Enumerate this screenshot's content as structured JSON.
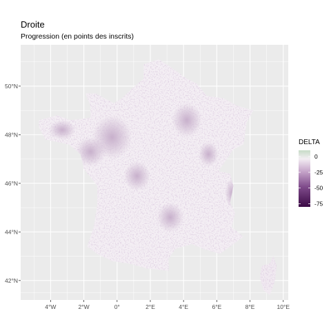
{
  "title": "Droite",
  "subtitle": "Progression (en points des inscrits)",
  "map": {
    "x_ticks": [
      "4°W",
      "2°W",
      "0°",
      "2°E",
      "4°E",
      "6°E",
      "8°E",
      "10°E"
    ],
    "y_ticks": [
      "50°N",
      "48°N",
      "46°N",
      "44°N",
      "42°N"
    ],
    "x_tick_values": [
      -4,
      -2,
      0,
      2,
      4,
      6,
      8,
      10
    ],
    "y_tick_values": [
      50,
      48,
      46,
      44,
      42
    ],
    "lon_range": [
      -5.8,
      10.3
    ],
    "lat_range": [
      41.2,
      51.7
    ],
    "panel_background": "#ebebeb",
    "grid_color": "#ffffff"
  },
  "legend": {
    "title": "DELTA",
    "ticks": [
      "0",
      "-25",
      "-50",
      "-75"
    ],
    "tick_values": [
      0,
      -25,
      -50,
      -75
    ],
    "range": [
      -80,
      10
    ],
    "colors": [
      "#3b0a45",
      "#7e4a8a",
      "#c4a2c8",
      "#f3eef3",
      "#c7dbc7"
    ]
  }
}
